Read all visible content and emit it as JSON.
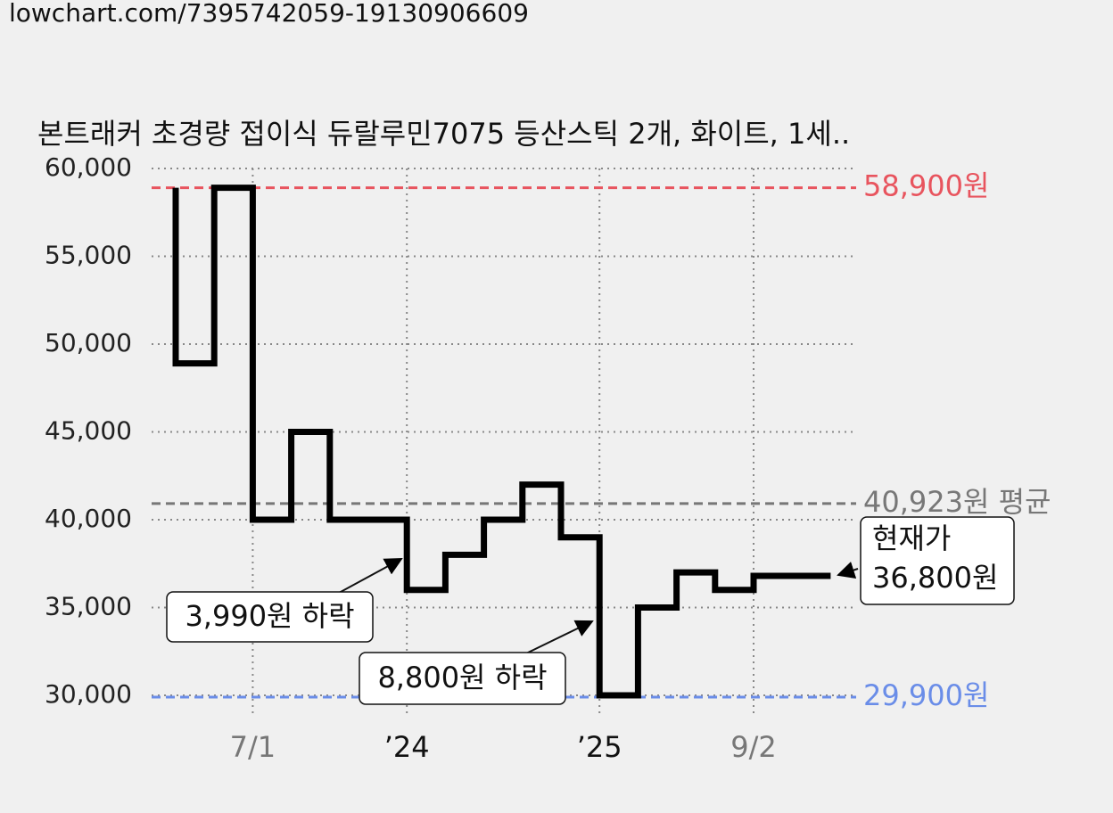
{
  "url": "lowchart.com/7395742059-19130906609",
  "chart_data": {
    "type": "step",
    "title": "본트래커 초경량 접이식 듀랄루민7075 등산스틱 2개, 화이트, 1세..",
    "categories": [
      null,
      null,
      "7/1",
      null,
      null,
      null,
      "’24",
      null,
      null,
      null,
      null,
      "’25",
      null,
      null,
      null,
      "9/2",
      null,
      null
    ],
    "category_colors": [
      null,
      null,
      "#777777",
      null,
      null,
      null,
      "#111111",
      null,
      null,
      null,
      null,
      "#111111",
      null,
      null,
      null,
      "#777777",
      null,
      null
    ],
    "values": [
      58900,
      48900,
      58900,
      40000,
      45000,
      40000,
      40000,
      36000,
      38000,
      40000,
      42000,
      39000,
      30000,
      35000,
      37000,
      36000,
      36800,
      36800
    ],
    "color": "#000000",
    "ylim": [
      30000,
      60000
    ],
    "yticks": [
      {
        "value": 30000,
        "label": "30,000"
      },
      {
        "value": 35000,
        "label": "35,000"
      },
      {
        "value": 40000,
        "label": "40,000"
      },
      {
        "value": 45000,
        "label": "45,000"
      },
      {
        "value": 50000,
        "label": "50,000"
      },
      {
        "value": 55000,
        "label": "55,000"
      },
      {
        "value": 60000,
        "label": "60,000"
      }
    ],
    "grid": true,
    "reference_lines": [
      {
        "value": 58900,
        "label": "58,900원",
        "color": "#e8545e"
      },
      {
        "value": 40923,
        "label": "40,923원 평균",
        "color": "#777777"
      },
      {
        "value": 29900,
        "label": "29,900원",
        "color": "#6a8de8"
      }
    ],
    "annotations": [
      "3,990원 하락",
      "8,800원 하락"
    ],
    "current_label": [
      "현재가",
      "36,800원"
    ]
  }
}
